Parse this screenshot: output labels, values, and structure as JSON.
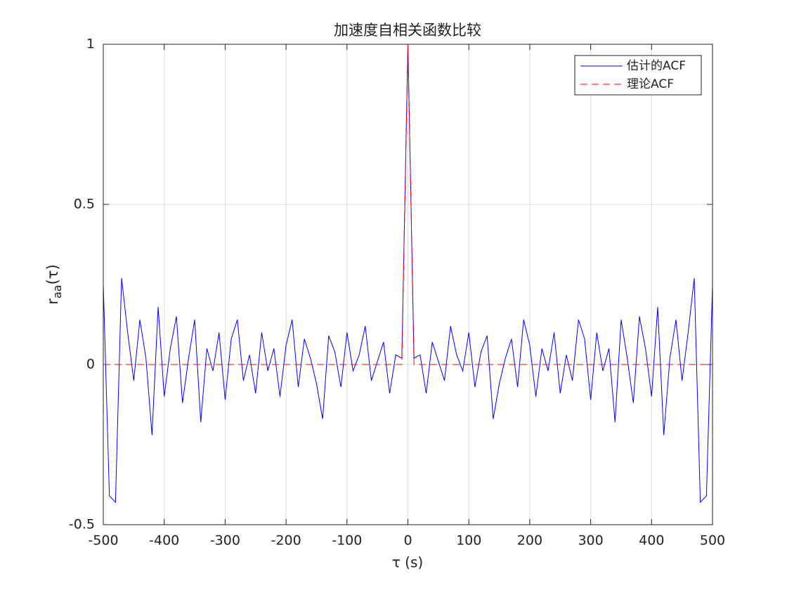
{
  "chart_data": {
    "type": "line",
    "title": "加速度自相关函数比较",
    "xlabel": "τ (s)",
    "ylabel": [
      "r",
      "aa",
      "(τ)"
    ],
    "x": [
      -500,
      -490,
      -480,
      -470,
      -460,
      -450,
      -440,
      -430,
      -420,
      -410,
      -400,
      -390,
      -380,
      -370,
      -360,
      -350,
      -340,
      -330,
      -320,
      -310,
      -300,
      -290,
      -280,
      -270,
      -260,
      -250,
      -240,
      -230,
      -220,
      -210,
      -200,
      -190,
      -180,
      -170,
      -160,
      -150,
      -140,
      -130,
      -120,
      -110,
      -100,
      -90,
      -80,
      -70,
      -60,
      -50,
      -40,
      -30,
      -20,
      -10,
      0,
      10,
      20,
      30,
      40,
      50,
      60,
      70,
      80,
      90,
      100,
      110,
      120,
      130,
      140,
      150,
      160,
      170,
      180,
      190,
      200,
      210,
      220,
      230,
      240,
      250,
      260,
      270,
      280,
      290,
      300,
      310,
      320,
      330,
      340,
      350,
      360,
      370,
      380,
      390,
      400,
      410,
      420,
      430,
      440,
      450,
      460,
      470,
      480,
      490,
      500
    ],
    "series": [
      {
        "name": "估计的ACF",
        "color": "#0000ff",
        "dash": false,
        "values": [
          0.25,
          -0.41,
          -0.43,
          0.27,
          0.1,
          -0.05,
          0.14,
          0.02,
          -0.22,
          0.18,
          -0.1,
          0.05,
          0.15,
          -0.12,
          0.02,
          0.14,
          -0.18,
          0.05,
          -0.02,
          0.1,
          -0.11,
          0.08,
          0.14,
          -0.05,
          0.03,
          -0.09,
          0.1,
          -0.02,
          0.05,
          -0.1,
          0.06,
          0.14,
          -0.07,
          0.08,
          0.02,
          -0.06,
          -0.17,
          0.09,
          0.04,
          -0.07,
          0.1,
          -0.02,
          0.03,
          0.12,
          -0.05,
          0.01,
          0.07,
          -0.09,
          0.03,
          0.02,
          1,
          0.02,
          0.03,
          -0.09,
          0.07,
          0.01,
          -0.05,
          0.12,
          0.03,
          -0.02,
          0.1,
          -0.07,
          0.04,
          0.09,
          -0.17,
          -0.06,
          0.02,
          0.08,
          -0.07,
          0.14,
          0.06,
          -0.1,
          0.05,
          -0.02,
          0.1,
          -0.09,
          0.03,
          -0.05,
          0.14,
          0.08,
          -0.11,
          0.1,
          -0.02,
          0.05,
          -0.18,
          0.14,
          0.02,
          -0.12,
          0.15,
          0.05,
          -0.1,
          0.18,
          -0.22,
          0.02,
          0.14,
          -0.05,
          0.1,
          0.27,
          -0.43,
          -0.41,
          0.25
        ]
      },
      {
        "name": "理论ACF",
        "color": "#ff0000",
        "dash": true,
        "values": [
          0,
          0,
          0,
          0,
          0,
          0,
          0,
          0,
          0,
          0,
          0,
          0,
          0,
          0,
          0,
          0,
          0,
          0,
          0,
          0,
          0,
          0,
          0,
          0,
          0,
          0,
          0,
          0,
          0,
          0,
          0,
          0,
          0,
          0,
          0,
          0,
          0,
          0,
          0,
          0,
          0,
          0,
          0,
          0,
          0,
          0,
          0,
          0,
          0,
          0,
          1,
          0,
          0,
          0,
          0,
          0,
          0,
          0,
          0,
          0,
          0,
          0,
          0,
          0,
          0,
          0,
          0,
          0,
          0,
          0,
          0,
          0,
          0,
          0,
          0,
          0,
          0,
          0,
          0,
          0,
          0,
          0,
          0,
          0,
          0,
          0,
          0,
          0,
          0,
          0,
          0,
          0,
          0,
          0,
          0,
          0,
          0,
          0,
          0,
          0,
          0
        ]
      }
    ],
    "xlim": [
      -500,
      500
    ],
    "xticks": [
      -500,
      -400,
      -300,
      -200,
      -100,
      0,
      100,
      200,
      300,
      400,
      500
    ],
    "ylim": [
      -0.5,
      1
    ],
    "yticks": [
      -0.5,
      0,
      0.5,
      1
    ],
    "grid": true,
    "legend": "northeast"
  }
}
